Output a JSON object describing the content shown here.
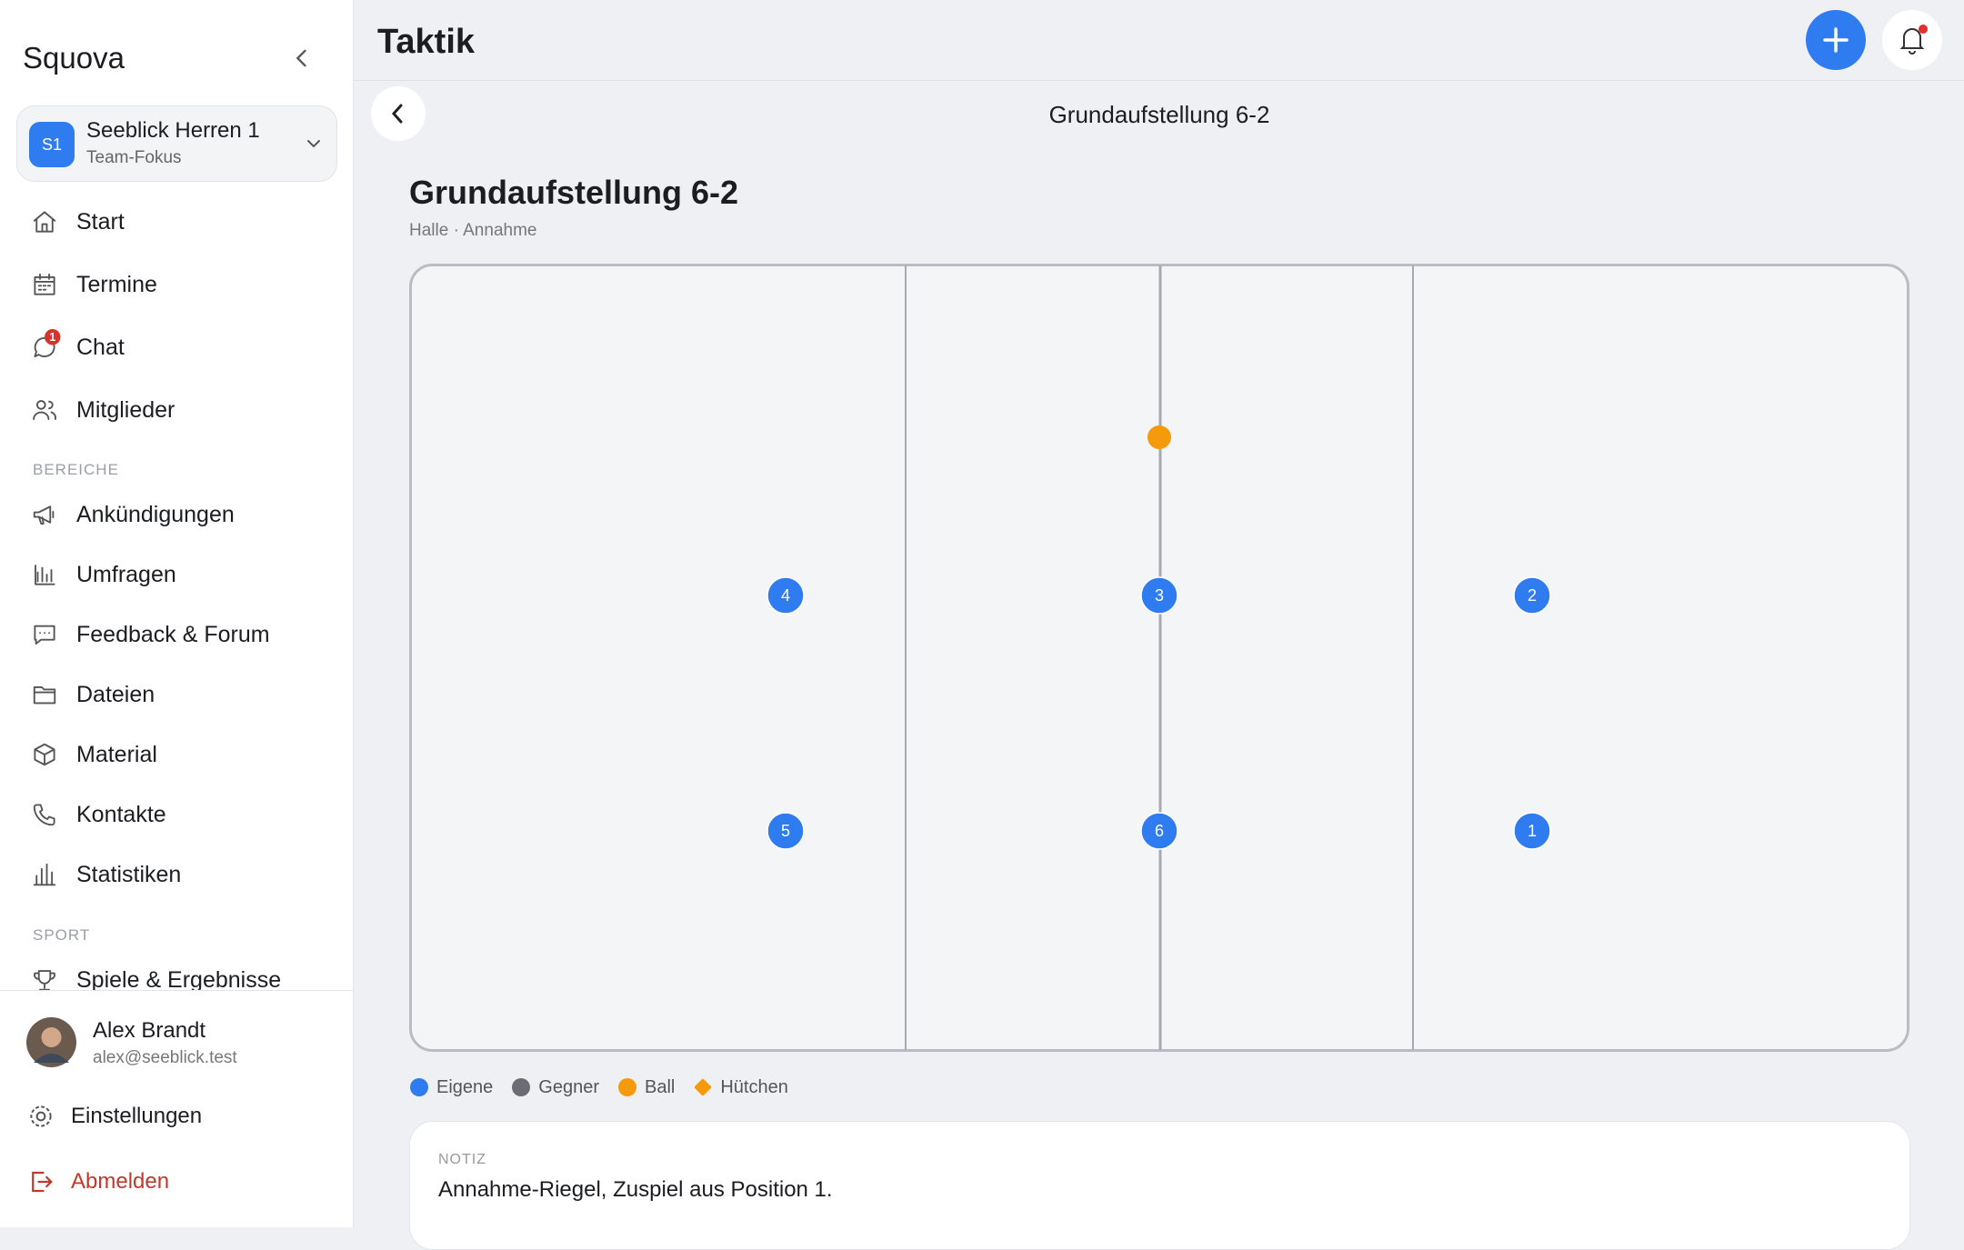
{
  "sidebar": {
    "brand": "Squova",
    "team": {
      "initials": "S1",
      "name": "Seeblick Herren 1",
      "subtitle": "Team-Fokus"
    },
    "nav": [
      "Start",
      "Termine",
      "Chat",
      "Mitglieder"
    ],
    "chat_badge": "1",
    "section_1": {
      "title": "BEREICHE",
      "items": [
        "Ankündigungen",
        "Umfragen",
        "Feedback & Forum",
        "Dateien",
        "Material",
        "Kontakte",
        "Statistiken"
      ]
    },
    "section_2": {
      "title": "SPORT",
      "items": [
        "Spiele & Ergebnisse"
      ]
    },
    "user": {
      "name": "Alex Brandt",
      "email": "alex@seeblick.test"
    },
    "settings": "Einstellungen",
    "logout": "Abmelden"
  },
  "header": {
    "title": "Taktik"
  },
  "subheader": {
    "title": "Grundaufstellung 6-2"
  },
  "tactic": {
    "title": "Grundaufstellung 6-2",
    "meta": "Halle · Annahme",
    "players": [
      "4",
      "3",
      "2",
      "5",
      "6",
      "1"
    ],
    "legend": [
      "Eigene",
      "Gegner",
      "Ball",
      "Hütchen"
    ]
  },
  "note": {
    "label": "NOTIZ",
    "text": "Annahme-Riegel, Zuspiel aus Position 1."
  }
}
